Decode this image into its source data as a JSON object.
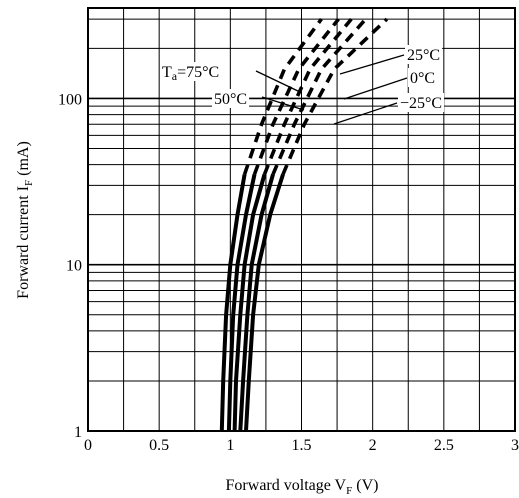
{
  "chart_data": {
    "type": "line",
    "xlabel": {
      "main": "Forward voltage V",
      "sub": "F",
      "unit": " (V)"
    },
    "ylabel": {
      "main": "Forward current I",
      "sub": "F",
      "unit": " (mA)"
    },
    "x_scale": "linear",
    "y_scale": "log",
    "xlim": [
      0,
      3
    ],
    "ylim": [
      1,
      350
    ],
    "x_ticks": [
      {
        "value": 0,
        "label": "0"
      },
      {
        "value": 0.5,
        "label": "0.5"
      },
      {
        "value": 1,
        "label": "1"
      },
      {
        "value": 1.5,
        "label": "1.5"
      },
      {
        "value": 2,
        "label": "2"
      },
      {
        "value": 2.5,
        "label": "2.5"
      },
      {
        "value": 3,
        "label": "3"
      }
    ],
    "y_ticks": [
      {
        "value": 1,
        "label": "1"
      },
      {
        "value": 10,
        "label": "10"
      },
      {
        "value": 100,
        "label": "100"
      }
    ],
    "grid": true,
    "solid_until_current": 35,
    "series": [
      {
        "name": "Ta=75°C",
        "points": [
          [
            0.94,
            1
          ],
          [
            0.95,
            2
          ],
          [
            0.97,
            5
          ],
          [
            1.0,
            10
          ],
          [
            1.05,
            20
          ],
          [
            1.1,
            35
          ],
          [
            1.22,
            70
          ],
          [
            1.38,
            150
          ],
          [
            1.64,
            300
          ]
        ]
      },
      {
        "name": "50°C",
        "points": [
          [
            0.99,
            1
          ],
          [
            1.0,
            2
          ],
          [
            1.02,
            5
          ],
          [
            1.05,
            10
          ],
          [
            1.11,
            20
          ],
          [
            1.17,
            35
          ],
          [
            1.3,
            70
          ],
          [
            1.48,
            150
          ],
          [
            1.76,
            300
          ]
        ]
      },
      {
        "name": "25°C",
        "points": [
          [
            1.03,
            1
          ],
          [
            1.04,
            2
          ],
          [
            1.07,
            5
          ],
          [
            1.1,
            10
          ],
          [
            1.16,
            20
          ],
          [
            1.24,
            35
          ],
          [
            1.38,
            70
          ],
          [
            1.56,
            150
          ],
          [
            1.85,
            300
          ]
        ]
      },
      {
        "name": "0°C",
        "points": [
          [
            1.07,
            1
          ],
          [
            1.09,
            2
          ],
          [
            1.12,
            5
          ],
          [
            1.15,
            10
          ],
          [
            1.22,
            20
          ],
          [
            1.3,
            35
          ],
          [
            1.45,
            70
          ],
          [
            1.64,
            150
          ],
          [
            1.95,
            300
          ]
        ]
      },
      {
        "name": "−25°C",
        "points": [
          [
            1.11,
            1
          ],
          [
            1.13,
            2
          ],
          [
            1.16,
            5
          ],
          [
            1.2,
            10
          ],
          [
            1.28,
            20
          ],
          [
            1.37,
            35
          ],
          [
            1.52,
            70
          ],
          [
            1.73,
            150
          ],
          [
            2.1,
            300
          ]
        ]
      }
    ]
  }
}
